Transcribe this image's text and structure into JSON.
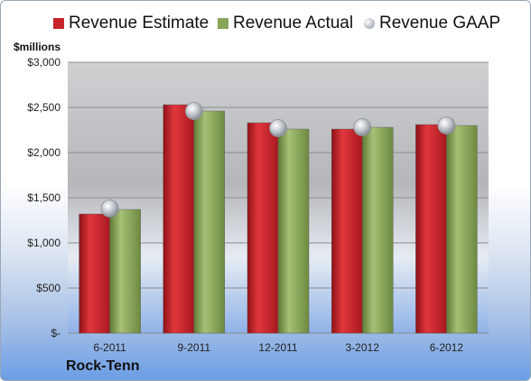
{
  "chart_data": {
    "type": "bar",
    "title": "",
    "unit_label": "$millions",
    "company": "Rock-Tenn",
    "categories": [
      "6-2011",
      "9-2011",
      "12-2011",
      "3-2012",
      "6-2012"
    ],
    "series": [
      {
        "name": "Revenue Estimate",
        "type": "bar",
        "color": "#c8242b",
        "values": [
          1320,
          2530,
          2330,
          2260,
          2310
        ]
      },
      {
        "name": "Revenue Actual",
        "type": "bar",
        "color": "#88a55a",
        "values": [
          1370,
          2460,
          2260,
          2280,
          2300
        ]
      },
      {
        "name": "Revenue GAAP",
        "type": "marker",
        "color": "#b9bec6",
        "values": [
          1380,
          2460,
          2270,
          2280,
          2300
        ]
      }
    ],
    "ylim": [
      0,
      3000
    ],
    "yticks": [
      0,
      500,
      1000,
      1500,
      2000,
      2500,
      3000
    ],
    "ytick_labels": [
      "$-",
      "$500",
      "$1,000",
      "$1,500",
      "$2,000",
      "$2,500",
      "$3,000"
    ],
    "grid": true,
    "legend_position": "top"
  }
}
